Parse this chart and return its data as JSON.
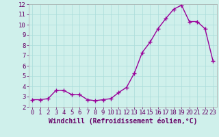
{
  "x": [
    0,
    1,
    2,
    3,
    4,
    5,
    6,
    7,
    8,
    9,
    10,
    11,
    12,
    13,
    14,
    15,
    16,
    17,
    18,
    19,
    20,
    21,
    22,
    23
  ],
  "y": [
    2.7,
    2.7,
    2.8,
    3.6,
    3.6,
    3.2,
    3.2,
    2.7,
    2.6,
    2.7,
    2.8,
    3.4,
    3.9,
    5.3,
    7.3,
    8.3,
    9.6,
    10.6,
    11.5,
    11.9,
    10.3,
    10.3,
    9.6,
    6.5
  ],
  "line_color": "#990099",
  "marker": "+",
  "markersize": 4,
  "linewidth": 1.0,
  "bg_color": "#cff0eb",
  "grid_color": "#aaddda",
  "xlabel": "Windchill (Refroidissement éolien,°C)",
  "xlabel_fontsize": 7,
  "xlim": [
    -0.5,
    23.5
  ],
  "ylim": [
    2,
    12
  ],
  "yticks": [
    2,
    3,
    4,
    5,
    6,
    7,
    8,
    9,
    10,
    11,
    12
  ],
  "xticks": [
    0,
    1,
    2,
    3,
    4,
    5,
    6,
    7,
    8,
    9,
    10,
    11,
    12,
    13,
    14,
    15,
    16,
    17,
    18,
    19,
    20,
    21,
    22,
    23
  ],
  "tick_fontsize": 6.5
}
